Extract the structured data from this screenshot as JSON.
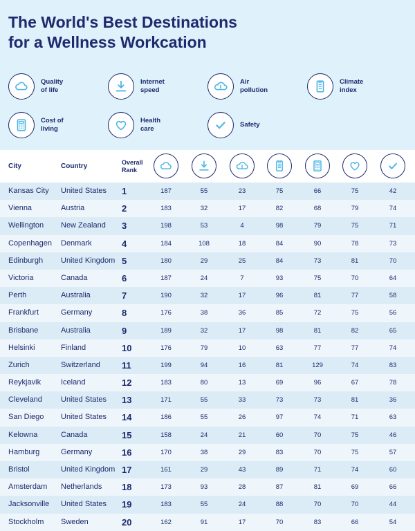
{
  "title_line1": "The World's Best Destinations",
  "title_line2": "for a Wellness Workcation",
  "legend": [
    {
      "icon": "cloud-icon",
      "line1": "Quality",
      "line2": "of life"
    },
    {
      "icon": "download-icon",
      "line1": "Internet",
      "line2": "speed"
    },
    {
      "icon": "pollution-cloud-icon",
      "line1": "Air",
      "line2": "pollution"
    },
    {
      "icon": "thermometer-icon",
      "line1": "Climate",
      "line2": "index"
    },
    {
      "icon": "calculator-icon",
      "line1": "Cost of",
      "line2": "living"
    },
    {
      "icon": "heart-icon",
      "line1": "Health",
      "line2": "care"
    },
    {
      "icon": "checkmark-icon",
      "line1": "Safety",
      "line2": ""
    }
  ],
  "header": {
    "city": "City",
    "country": "Country",
    "rank_line1": "Overall",
    "rank_line2": "Rank"
  },
  "rows": [
    {
      "city": "Kansas City",
      "country": "United States",
      "rank": "1",
      "values": [
        "187",
        "55",
        "23",
        "75",
        "66",
        "75",
        "42"
      ]
    },
    {
      "city": "Vienna",
      "country": "Austria",
      "rank": "2",
      "values": [
        "183",
        "32",
        "17",
        "82",
        "68",
        "79",
        "74"
      ]
    },
    {
      "city": "Wellington",
      "country": "New Zealand",
      "rank": "3",
      "values": [
        "198",
        "53",
        "4",
        "98",
        "79",
        "75",
        "71"
      ]
    },
    {
      "city": "Copenhagen",
      "country": "Denmark",
      "rank": "4",
      "values": [
        "184",
        "108",
        "18",
        "84",
        "90",
        "78",
        "73"
      ]
    },
    {
      "city": "Edinburgh",
      "country": "United Kingdom",
      "rank": "5",
      "values": [
        "180",
        "29",
        "25",
        "84",
        "73",
        "81",
        "70"
      ]
    },
    {
      "city": "Victoria",
      "country": "Canada",
      "rank": "6",
      "values": [
        "187",
        "24",
        "7",
        "93",
        "75",
        "70",
        "64"
      ]
    },
    {
      "city": "Perth",
      "country": "Australia",
      "rank": "7",
      "values": [
        "190",
        "32",
        "17",
        "96",
        "81",
        "77",
        "58"
      ]
    },
    {
      "city": "Frankfurt",
      "country": "Germany",
      "rank": "8",
      "values": [
        "176",
        "38",
        "36",
        "85",
        "72",
        "75",
        "56"
      ]
    },
    {
      "city": "Brisbane",
      "country": "Australia",
      "rank": "9",
      "values": [
        "189",
        "32",
        "17",
        "98",
        "81",
        "82",
        "65"
      ]
    },
    {
      "city": "Helsinki",
      "country": "Finland",
      "rank": "10",
      "values": [
        "176",
        "79",
        "10",
        "63",
        "77",
        "77",
        "74"
      ]
    },
    {
      "city": "Zurich",
      "country": "Switzerland",
      "rank": "11",
      "values": [
        "199",
        "94",
        "16",
        "81",
        "129",
        "74",
        "83"
      ]
    },
    {
      "city": "Reykjavik",
      "country": "Iceland",
      "rank": "12",
      "values": [
        "183",
        "80",
        "13",
        "69",
        "96",
        "67",
        "78"
      ]
    },
    {
      "city": "Cleveland",
      "country": "United States",
      "rank": "13",
      "values": [
        "171",
        "55",
        "33",
        "73",
        "73",
        "81",
        "36"
      ]
    },
    {
      "city": "San Diego",
      "country": "United States",
      "rank": "14",
      "values": [
        "186",
        "55",
        "26",
        "97",
        "74",
        "71",
        "63"
      ]
    },
    {
      "city": "Kelowna",
      "country": "Canada",
      "rank": "15",
      "values": [
        "158",
        "24",
        "21",
        "60",
        "70",
        "75",
        "46"
      ]
    },
    {
      "city": "Hamburg",
      "country": "Germany",
      "rank": "16",
      "values": [
        "170",
        "38",
        "29",
        "83",
        "70",
        "75",
        "57"
      ]
    },
    {
      "city": "Bristol",
      "country": "United Kingdom",
      "rank": "17",
      "values": [
        "161",
        "29",
        "43",
        "89",
        "71",
        "74",
        "60"
      ]
    },
    {
      "city": "Amsterdam",
      "country": "Netherlands",
      "rank": "18",
      "values": [
        "173",
        "93",
        "28",
        "87",
        "81",
        "69",
        "66"
      ]
    },
    {
      "city": "Jacksonville",
      "country": "United States",
      "rank": "19",
      "values": [
        "183",
        "55",
        "24",
        "88",
        "70",
        "70",
        "44"
      ]
    },
    {
      "city": "Stockholm",
      "country": "Sweden",
      "rank": "20",
      "values": [
        "162",
        "91",
        "17",
        "70",
        "83",
        "66",
        "54"
      ]
    }
  ]
}
